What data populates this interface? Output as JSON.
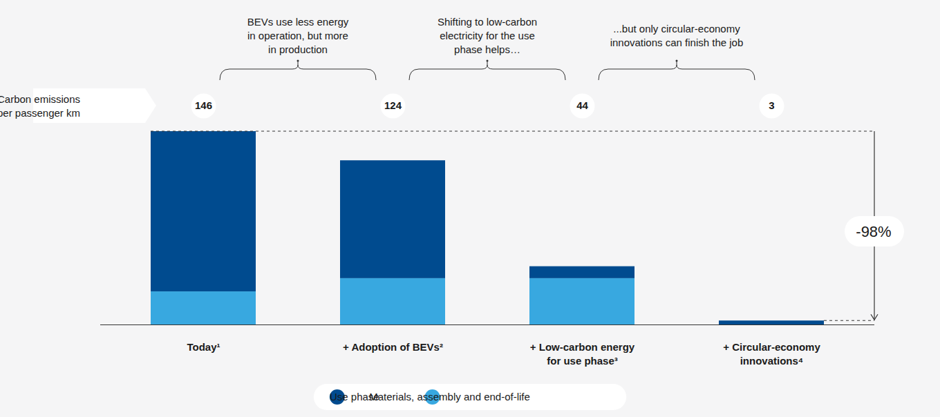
{
  "chart_data": {
    "type": "bar",
    "stacked": true,
    "tick_labels": false,
    "y_label": "Carbon emissions\nper passenger km",
    "categories": [
      "Today¹",
      "+ Adoption of BEVs²",
      "+ Low-carbon energy\nfor use phase³",
      "+ Circular-economy\ninnovations⁴"
    ],
    "series": [
      {
        "name": "Use phase",
        "color": "#004b8f",
        "values": [
          121,
          89,
          9,
          3
        ]
      },
      {
        "name": "Materials, assembly and end-of-life",
        "color": "#38a8e0",
        "values": [
          25,
          35,
          35,
          0
        ]
      }
    ],
    "totals": [
      146,
      124,
      44,
      3
    ],
    "annotations": [
      "BEVs use less energy\nin operation, but more\nin production",
      "Shifting to low-carbon\nelectricity for the use\nphase helps…",
      "...but only circular-economy\ninnovations can finish the job"
    ],
    "change_label": "-98%",
    "ylim": [
      0,
      146
    ],
    "yticks": [],
    "grid": false,
    "legend": "bottom"
  }
}
